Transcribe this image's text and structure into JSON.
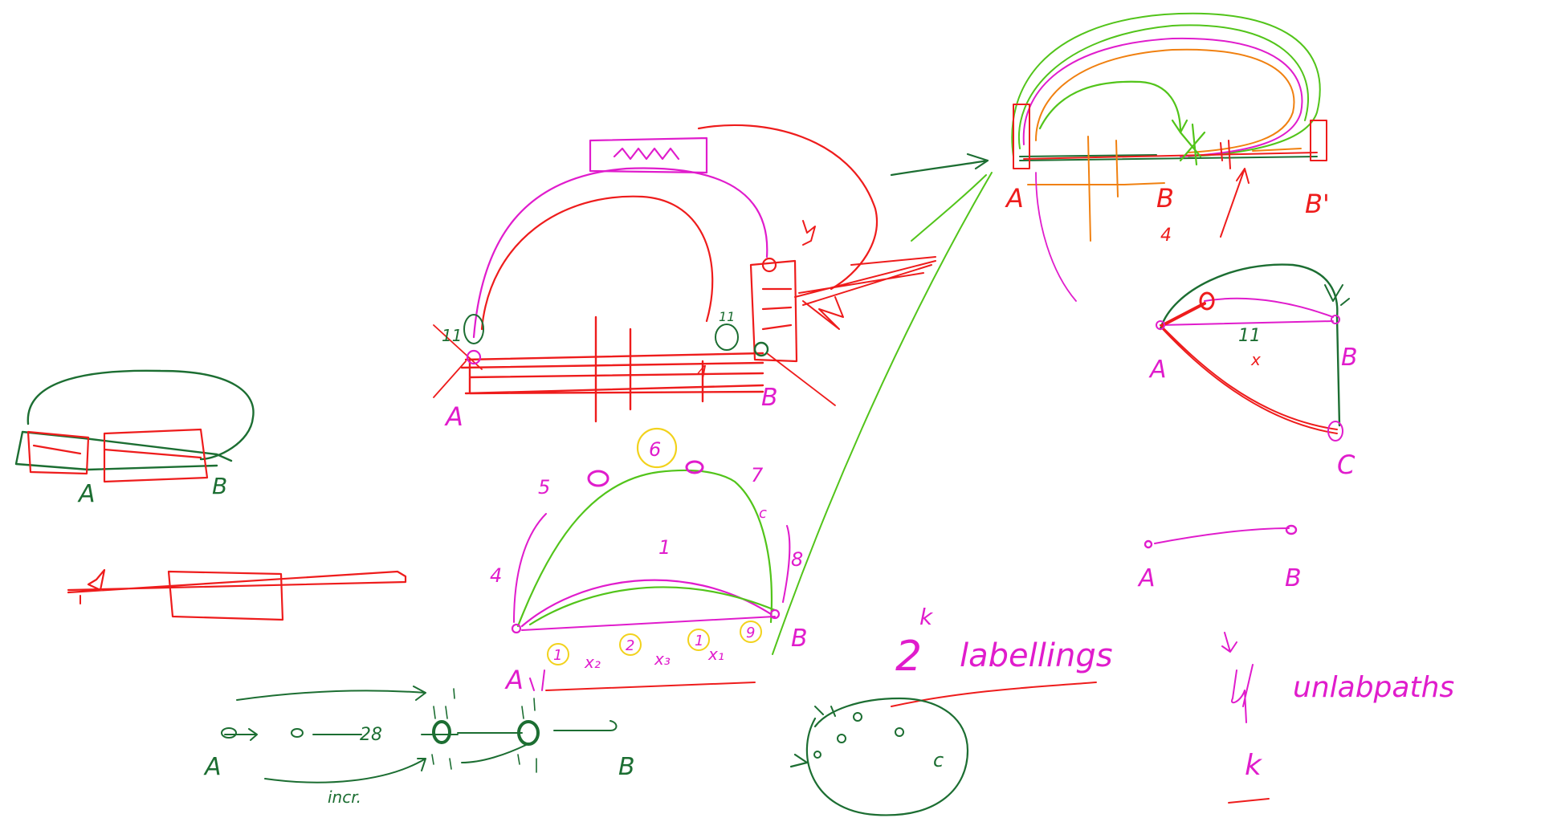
{
  "colors": {
    "red": "#ee1c1c",
    "magenta": "#e01ccc",
    "green": "#1c6e32",
    "lightgreen": "#52c41a",
    "orange": "#f08010",
    "yellow": "#f2d21c"
  },
  "labels": {
    "left": {
      "a": "A",
      "b": "B"
    },
    "middle": {
      "a": "A",
      "b": "B",
      "n11": "11",
      "n4": "4",
      "n11b": "11"
    },
    "arc": {
      "a": "A",
      "b": "B",
      "n1": "1",
      "n4": "4",
      "n5": "5",
      "n6": "6",
      "n7": "7",
      "n8": "8",
      "c": "c",
      "c1": "1",
      "c2": "2",
      "c3": "1",
      "c4": "9",
      "x2": "x₂",
      "x3": "x₃",
      "x1": "x₁"
    },
    "chain": {
      "a": "A",
      "b": "B",
      "n28": "28",
      "incr": "incr."
    },
    "top_right": {
      "a": "A",
      "b": "B",
      "bp": "B'",
      "n4": "4"
    },
    "triangle": {
      "a": "A",
      "b": "B",
      "c": "C",
      "n11": "11",
      "x": "x"
    },
    "segment": {
      "a": "A",
      "b": "B"
    },
    "labellings": {
      "base": "2",
      "exp": "k",
      "word": "labellings"
    },
    "unlab": {
      "word": "unlabpaths",
      "k": "k"
    },
    "loop": {
      "c": "c"
    }
  }
}
